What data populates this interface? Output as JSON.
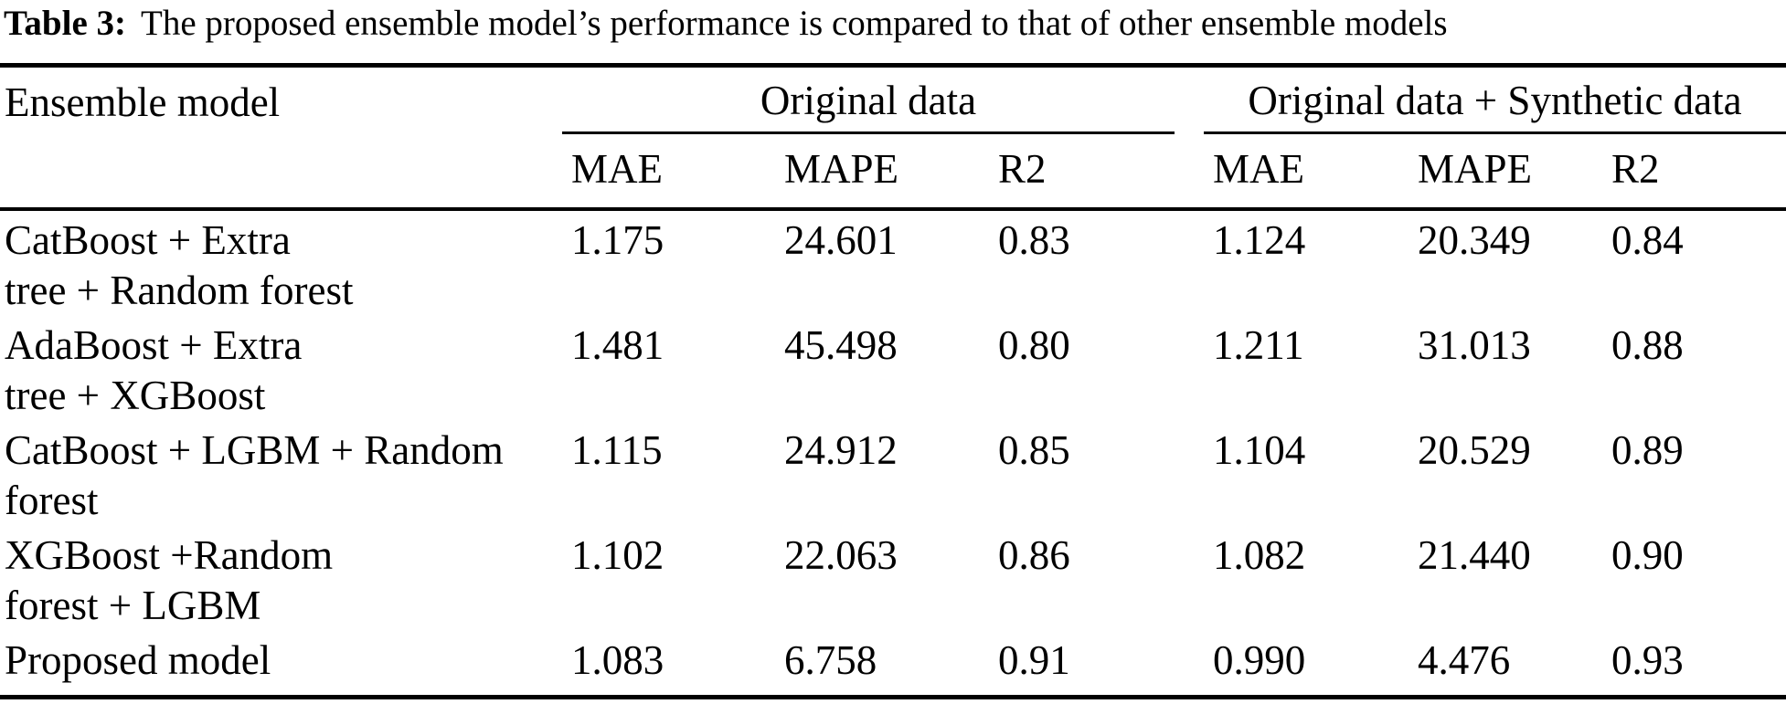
{
  "caption": {
    "label": "Table 3:",
    "text": "The proposed ensemble model’s performance is compared to that of other ensemble models"
  },
  "table": {
    "col1_header": "Ensemble model",
    "group1_header": "Original data",
    "group2_header": "Original data + Synthetic data",
    "metrics": {
      "mae": "MAE",
      "mape": "MAPE",
      "r2": "R2"
    },
    "rows": [
      {
        "model": "CatBoost + Extra\ntree + Random forest",
        "orig": {
          "mae": "1.175",
          "mape": "24.601",
          "r2": "0.83"
        },
        "synth": {
          "mae": "1.124",
          "mape": "20.349",
          "r2": "0.84"
        }
      },
      {
        "model": "AdaBoost + Extra\ntree + XGBoost",
        "orig": {
          "mae": "1.481",
          "mape": "45.498",
          "r2": "0.80"
        },
        "synth": {
          "mae": "1.211",
          "mape": "31.013",
          "r2": "0.88"
        }
      },
      {
        "model": "CatBoost + LGBM + Random\nforest",
        "orig": {
          "mae": "1.115",
          "mape": "24.912",
          "r2": "0.85"
        },
        "synth": {
          "mae": "1.104",
          "mape": "20.529",
          "r2": "0.89"
        }
      },
      {
        "model": "XGBoost +Random\nforest + LGBM",
        "orig": {
          "mae": "1.102",
          "mape": "22.063",
          "r2": "0.86"
        },
        "synth": {
          "mae": "1.082",
          "mape": "21.440",
          "r2": "0.90"
        }
      },
      {
        "model": "Proposed model",
        "orig": {
          "mae": "1.083",
          "mape": "6.758",
          "r2": "0.91"
        },
        "synth": {
          "mae": "0.990",
          "mape": "4.476",
          "r2": "0.93"
        }
      }
    ]
  }
}
